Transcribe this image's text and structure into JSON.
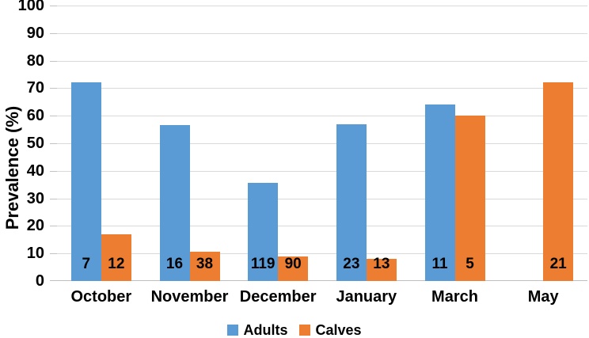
{
  "chart_data": {
    "type": "bar",
    "title": "",
    "ylabel": "Prevalence (%)",
    "xlabel": "",
    "ylim": [
      0,
      100
    ],
    "ytick_interval": 10,
    "grid": true,
    "legend_position": "bottom",
    "categories": [
      "October",
      "November",
      "December",
      "January",
      "March",
      "May"
    ],
    "series": [
      {
        "name": "Adults",
        "color": "#5B9BD5",
        "values": [
          72,
          56.5,
          35.5,
          57,
          64,
          null
        ],
        "bar_labels": [
          "7",
          "16",
          "119",
          "23",
          "11",
          null
        ]
      },
      {
        "name": "Calves",
        "color": "#ED7D31",
        "values": [
          17,
          10.5,
          9,
          8,
          60,
          72
        ],
        "bar_labels": [
          "12",
          "38",
          "90",
          "13",
          "5",
          "21"
        ]
      }
    ],
    "colors": {
      "gridline": "#D9D9D9",
      "axis_line": "#BFBFBF",
      "text": "#000000",
      "background": "#FFFFFF"
    }
  }
}
